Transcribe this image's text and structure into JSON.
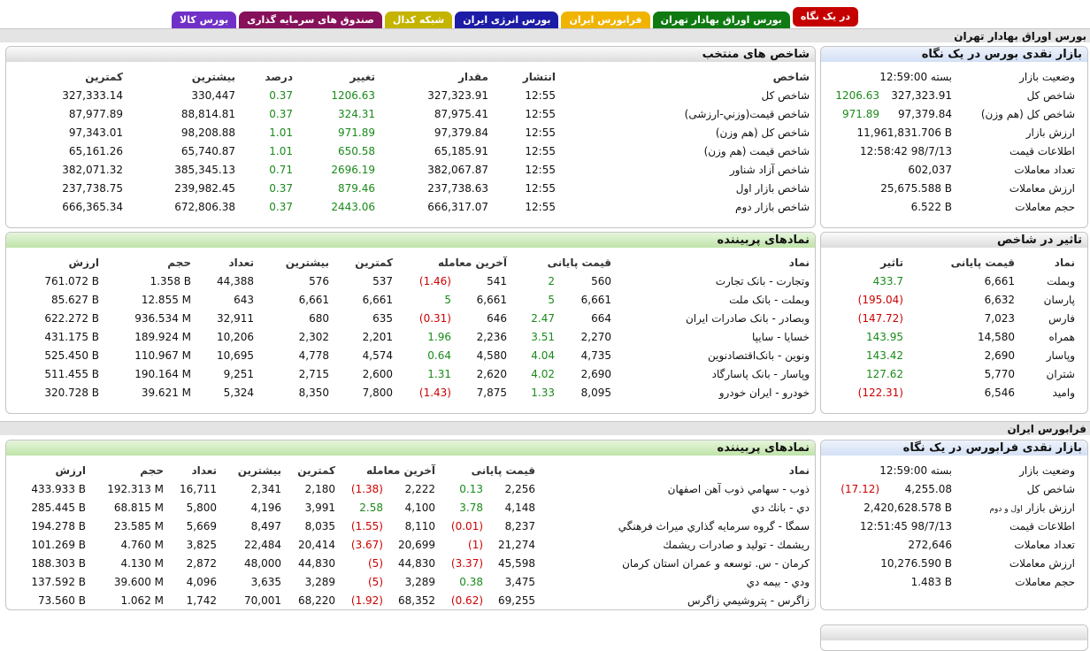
{
  "tabs": [
    {
      "label": "در یک نگاه",
      "color": "#c40000"
    },
    {
      "label": "بورس اوراق بهادار تهران",
      "color": "#0f7a12"
    },
    {
      "label": "فرابورس ایران",
      "color": "#f0b400"
    },
    {
      "label": "بورس انرژی ایران",
      "color": "#1c1ca6"
    },
    {
      "label": "شبکه کدال",
      "color": "#c4b400"
    },
    {
      "label": "صندوق های سرمایه گذاری",
      "color": "#86105a"
    },
    {
      "label": "بورس کالا",
      "color": "#7030c8"
    }
  ],
  "up_color": "#1a8a1a",
  "down_color": "#cc0000",
  "sections": [
    {
      "title": "بورس اوراق بهادار تهران",
      "summary": {
        "title": "بازار نقدی بورس در یک نگاه",
        "rows": [
          {
            "label": "وضعیت بازار",
            "value": "بسته 12:59:00"
          },
          {
            "label": "شاخص کل",
            "value": "327,323.91",
            "change": "1206.63"
          },
          {
            "label": "شاخص کل (هم وزن)",
            "value": "97,379.84",
            "change": "971.89"
          },
          {
            "label": "ارزش بازار",
            "value": "11,961,831.706 B"
          },
          {
            "label": "اطلاعات قیمت",
            "value": "12:58:42 98/7/13"
          },
          {
            "label": "تعداد معاملات",
            "value": "602,037"
          },
          {
            "label": "ارزش معاملات",
            "value": "25,675.588 B"
          },
          {
            "label": "حجم معاملات",
            "value": "6.522 B"
          }
        ]
      },
      "indices": {
        "title": "شاخص های منتخب",
        "columns": [
          "شاخص",
          "انتشار",
          "مقدار",
          "تغییر",
          "درصد",
          "بیشترین",
          "کمترین"
        ],
        "rows": [
          [
            "شاخص کل",
            "12:55",
            "327,323.91",
            "1206.63",
            "0.37",
            "330,447",
            "327,333.14"
          ],
          [
            "شاخص قیمت(وزني-ارزشی)",
            "12:55",
            "87,975.41",
            "324.31",
            "0.37",
            "88,814.81",
            "87,977.89"
          ],
          [
            "شاخص کل (هم وزن)",
            "12:55",
            "97,379.84",
            "971.89",
            "1.01",
            "98,208.88",
            "97,343.01"
          ],
          [
            "شاخص قیمت (هم وزن)",
            "12:55",
            "65,185.91",
            "650.58",
            "1.01",
            "65,740.87",
            "65,161.26"
          ],
          [
            "شاخص آزاد شناور",
            "12:55",
            "382,067.87",
            "2696.19",
            "0.71",
            "385,345.13",
            "382,071.32"
          ],
          [
            "شاخص بازار اول",
            "12:55",
            "237,738.63",
            "879.46",
            "0.37",
            "239,982.45",
            "237,738.75"
          ],
          [
            "شاخص بازار دوم",
            "12:55",
            "666,317.07",
            "2443.06",
            "0.37",
            "672,806.38",
            "666,365.34"
          ]
        ]
      },
      "impact": {
        "title": "تاثیر در شاخص",
        "columns": [
          "نماد",
          "قیمت پایانی",
          "تاثیر"
        ],
        "rows": [
          [
            "وبملت",
            "6,661",
            "433.7"
          ],
          [
            "پارسان",
            "6,632",
            "(195.04)"
          ],
          [
            "فارس",
            "7,023",
            "(147.72)"
          ],
          [
            "همراه",
            "14,580",
            "143.95"
          ],
          [
            "وپاسار",
            "2,690",
            "143.42"
          ],
          [
            "شتران",
            "5,770",
            "127.62"
          ],
          [
            "وامید",
            "6,546",
            "(122.31)"
          ]
        ]
      },
      "watched": {
        "title": "نمادهای پربیننده",
        "columns": [
          "نماد",
          "قیمت پایانی",
          "آخرین معامله",
          "کمترین",
          "بیشترین",
          "تعداد",
          "حجم",
          "ارزش"
        ],
        "rows": [
          [
            "وتجارت - بانک تجارت",
            "560",
            "2",
            "541",
            "(1.46)",
            "537",
            "576",
            "44,388",
            "1.358 B",
            "761.072 B"
          ],
          [
            "وبملت - بانک ملت",
            "6,661",
            "5",
            "6,661",
            "5",
            "6,661",
            "6,661",
            "643",
            "12.855 M",
            "85.627 B"
          ],
          [
            "وبصادر - بانک صادرات ایران",
            "664",
            "2.47",
            "646",
            "(0.31)",
            "635",
            "680",
            "32,911",
            "936.534 M",
            "622.272 B"
          ],
          [
            "خسایا - سایپا",
            "2,270",
            "3.51",
            "2,236",
            "1.96",
            "2,201",
            "2,302",
            "10,206",
            "189.924 M",
            "431.175 B"
          ],
          [
            "ونوین - بانک‌اقتصادنوین",
            "4,735",
            "4.04",
            "4,580",
            "0.64",
            "4,574",
            "4,778",
            "10,695",
            "110.967 M",
            "525.450 B"
          ],
          [
            "وپاسار - بانک پاسارگاد",
            "2,690",
            "4.02",
            "2,620",
            "1.31",
            "2,600",
            "2,715",
            "9,251",
            "190.164 M",
            "511.455 B"
          ],
          [
            "خودرو - ایران خودرو",
            "8,095",
            "1.33",
            "7,875",
            "(1.43)",
            "7,800",
            "8,350",
            "5,324",
            "39.621 M",
            "320.728 B"
          ]
        ]
      }
    },
    {
      "title": "فرابورس ایران",
      "summary": {
        "title": "بازار نقدی فرابورس در یک نگاه",
        "rows": [
          {
            "label": "وضعیت بازار",
            "value": "بسته 12:59:00"
          },
          {
            "label": "شاخص کل",
            "value": "4,255.08",
            "change": "(17.12)"
          },
          {
            "label": "ارزش بازار",
            "note": "اول و دوم",
            "value": "2,420,628.578 B"
          },
          {
            "label": "اطلاعات قیمت",
            "value": "12:51:45 98/7/13"
          },
          {
            "label": "تعداد معاملات",
            "value": "272,646"
          },
          {
            "label": "ارزش معاملات",
            "value": "10,276.590 B"
          },
          {
            "label": "حجم معاملات",
            "value": "1.483 B"
          }
        ]
      },
      "watched": {
        "title": "نمادهای پربیننده",
        "columns": [
          "نماد",
          "قیمت پایانی",
          "آخرین معامله",
          "کمترین",
          "بیشترین",
          "تعداد",
          "حجم",
          "ارزش"
        ],
        "rows": [
          [
            "ذوب - سهامي ذوب آهن اصفهان",
            "2,256",
            "0.13",
            "2,222",
            "(1.38)",
            "2,180",
            "2,341",
            "16,711",
            "192.313 M",
            "433.933 B"
          ],
          [
            "دي - بانك دي",
            "4,148",
            "3.78",
            "4,100",
            "2.58",
            "3,991",
            "4,196",
            "5,800",
            "68.815 M",
            "285.445 B"
          ],
          [
            "سمگا - گروه سرمايه گذاري ميراث فرهنگي",
            "8,237",
            "(0.01)",
            "8,110",
            "(1.55)",
            "8,035",
            "8,497",
            "5,669",
            "23.585 M",
            "194.278 B"
          ],
          [
            "ريشمك - توليد و صادرات ريشمك",
            "21,274",
            "(1)",
            "20,699",
            "(3.67)",
            "20,414",
            "22,484",
            "3,825",
            "4.760 M",
            "101.269 B"
          ],
          [
            "كرمان - س. توسعه و عمران استان كرمان",
            "45,598",
            "(3.37)",
            "44,830",
            "(5)",
            "44,830",
            "48,000",
            "2,872",
            "4.130 M",
            "188.303 B"
          ],
          [
            "ودي - بيمه دي",
            "3,475",
            "0.38",
            "3,289",
            "(5)",
            "3,289",
            "3,635",
            "4,096",
            "39.600 M",
            "137.592 B"
          ],
          [
            "زاگرس - پتروشيمي زاگرس",
            "69,255",
            "(0.62)",
            "68,352",
            "(1.92)",
            "68,220",
            "70,001",
            "1,742",
            "1.062 M",
            "73.560 B"
          ]
        ]
      }
    }
  ]
}
